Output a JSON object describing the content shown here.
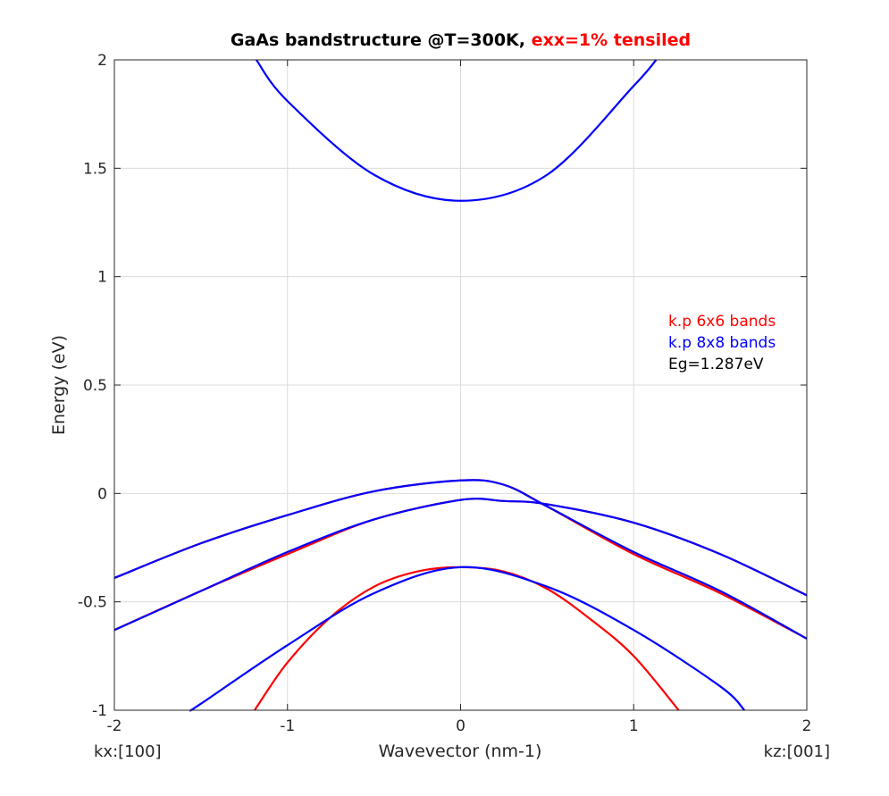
{
  "chart_data": {
    "type": "line",
    "title": "GaAs bandstructure @T=300K, ",
    "title_highlight": "exx=1% tensiled",
    "title_highlight_color": "#ff0000",
    "xlabel": "Wavevector (nm-1)",
    "ylabel": "Energy (eV)",
    "xlim": [
      -2,
      2
    ],
    "ylim": [
      -1,
      2
    ],
    "xticks": [
      -2,
      -1,
      0,
      1,
      2
    ],
    "xtick_labels": [
      "-2",
      "-1",
      "0",
      "1",
      "2"
    ],
    "yticks": [
      -1,
      -0.5,
      0,
      0.5,
      1,
      1.5,
      2
    ],
    "ytick_labels": [
      "-1",
      "-0.5",
      "0",
      "0.5",
      "1",
      "1.5",
      "2"
    ],
    "grid": true,
    "x_left_label": "kx:[100]",
    "x_right_label": "kz:[001]",
    "legend": [
      {
        "text": "k.p 6x6 bands",
        "color": "#ff0000"
      },
      {
        "text": "k.p 8x8 bands",
        "color": "#0000ff"
      },
      {
        "text": "Eg=1.287eV",
        "color": "#000000"
      }
    ],
    "legend_placement": "right",
    "series": [
      {
        "color": "#ff0000",
        "x": [
          -2,
          -1.5,
          -1,
          -0.5,
          0,
          0.25,
          0.5,
          1,
          1.5,
          2
        ],
        "y": [
          -0.39,
          -0.23,
          -0.1,
          0.01,
          0.06,
          0.04,
          -0.06,
          -0.28,
          -0.46,
          -0.67
        ]
      },
      {
        "color": "#ff0000",
        "x": [
          -2,
          -1.5,
          -1,
          -0.5,
          0,
          0.25,
          0.5,
          1,
          1.5,
          2
        ],
        "y": [
          -0.63,
          -0.45,
          -0.28,
          -0.12,
          -0.03,
          -0.035,
          -0.05,
          -0.135,
          -0.28,
          -0.47
        ]
      },
      {
        "color": "#ff0000",
        "x": [
          -1.19,
          -1,
          -0.75,
          -0.5,
          -0.25,
          0,
          0.25,
          0.5,
          0.75,
          1,
          1.26
        ],
        "y": [
          -1,
          -0.78,
          -0.57,
          -0.43,
          -0.36,
          -0.34,
          -0.36,
          -0.44,
          -0.58,
          -0.75,
          -1
        ]
      },
      {
        "color": "#0000ff",
        "x": [
          -1.18,
          -1,
          -0.5,
          0,
          0.5,
          1,
          1.13
        ],
        "y": [
          2,
          1.81,
          1.47,
          1.35,
          1.47,
          1.88,
          2
        ]
      },
      {
        "color": "#0000ff",
        "x": [
          -2,
          -1.5,
          -1,
          -0.5,
          0,
          0.25,
          0.5,
          1,
          1.5,
          2
        ],
        "y": [
          -0.39,
          -0.23,
          -0.1,
          0.01,
          0.06,
          0.04,
          -0.06,
          -0.27,
          -0.45,
          -0.67
        ]
      },
      {
        "color": "#0000ff",
        "x": [
          -2,
          -1.5,
          -1,
          -0.5,
          0,
          0.25,
          0.5,
          1,
          1.5,
          2
        ],
        "y": [
          -0.63,
          -0.45,
          -0.27,
          -0.12,
          -0.03,
          -0.035,
          -0.05,
          -0.135,
          -0.28,
          -0.47
        ]
      },
      {
        "color": "#0000ff",
        "x": [
          -1.56,
          -1.5,
          -1,
          -0.5,
          0,
          0.5,
          1,
          1.5,
          1.64
        ],
        "y": [
          -1,
          -0.97,
          -0.7,
          -0.46,
          -0.34,
          -0.43,
          -0.63,
          -0.89,
          -1
        ]
      }
    ]
  }
}
